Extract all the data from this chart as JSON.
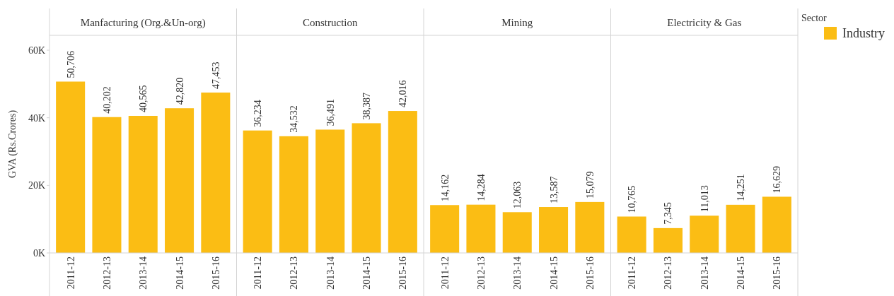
{
  "chart_data": [
    {
      "type": "bar",
      "title": "Manfacturing (Org.&Un-org)",
      "ylabel": "GVA (Rs.Crores)",
      "categories": [
        "2011-12",
        "2012-13",
        "2013-14",
        "2014-15",
        "2015-16"
      ],
      "series": [
        {
          "color": "#fbbd14",
          "values": [
            50706,
            40202,
            40565,
            42820,
            47453
          ],
          "value_labels": [
            "50,706",
            "40,202",
            "40,565",
            "42,820",
            "47,453"
          ]
        }
      ],
      "ylim": [
        0,
        64400
      ],
      "yticks": [
        {
          "value": 0,
          "label": "0K"
        },
        {
          "value": 20000,
          "label": "20K"
        },
        {
          "value": 40000,
          "label": "40K"
        },
        {
          "value": 60000,
          "label": "60K"
        }
      ]
    },
    {
      "type": "bar",
      "title": "Construction",
      "categories": [
        "2011-12",
        "2012-13",
        "2013-14",
        "2014-15",
        "2015-16"
      ],
      "series": [
        {
          "color": "#fbbd14",
          "values": [
            36234,
            34532,
            36491,
            38387,
            42016
          ],
          "value_labels": [
            "36,234",
            "34,532",
            "36,491",
            "38,387",
            "42,016"
          ]
        }
      ],
      "ylim": [
        0,
        64400
      ],
      "tick_labels": "x"
    },
    {
      "type": "bar",
      "title": "Mining",
      "categories": [
        "2011-12",
        "2012-13",
        "2013-14",
        "2014-15",
        "2015-16"
      ],
      "series": [
        {
          "color": "#fbbd14",
          "values": [
            14162,
            14284,
            12063,
            13587,
            15079
          ],
          "value_labels": [
            "14,162",
            "14,284",
            "12,063",
            "13,587",
            "15,079"
          ]
        }
      ],
      "ylim": [
        0,
        64400
      ],
      "tick_labels": "x"
    },
    {
      "type": "bar",
      "title": "Electricity & Gas",
      "categories": [
        "2011-12",
        "2012-13",
        "2013-14",
        "2014-15",
        "2015-16"
      ],
      "series": [
        {
          "name": "Industry",
          "color": "#fbbd14",
          "values": [
            10765,
            7345,
            11013,
            14251,
            16629
          ],
          "value_labels": [
            "10,765",
            "7,345",
            "11,013",
            "14,251",
            "16,629"
          ]
        }
      ],
      "ylim": [
        0,
        64400
      ],
      "tick_labels": "x",
      "legend": "right",
      "legend_title": "Sector"
    }
  ]
}
